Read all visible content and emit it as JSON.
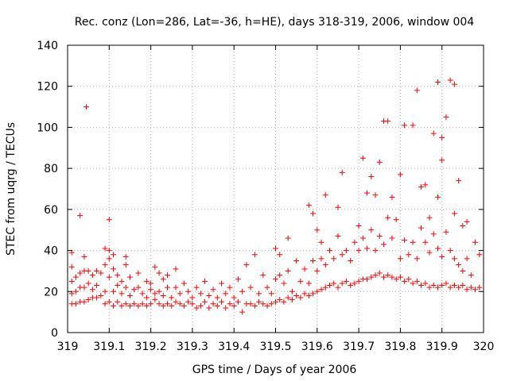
{
  "chart_data": {
    "type": "scatter",
    "title": "Rec. conz (Lon=286, Lat=-36, h=HE), days 318-319, 2006, window 004",
    "xlabel": "GPS time / Days of year 2006",
    "ylabel": "STEC from uqrg / TECUs",
    "xlim": [
      319,
      320
    ],
    "ylim": [
      0,
      140
    ],
    "xticks": [
      319,
      319.1,
      319.2,
      319.3,
      319.4,
      319.5,
      319.6,
      319.7,
      319.8,
      319.9,
      320
    ],
    "xtick_labels": [
      "319",
      "319.1",
      "319.2",
      "319.3",
      "319.4",
      "319.5",
      "319.6",
      "319.7",
      "319.8",
      "319.9",
      "320"
    ],
    "yticks": [
      0,
      20,
      40,
      60,
      80,
      100,
      120,
      140
    ],
    "ytick_labels": [
      "0",
      "20",
      "40",
      "60",
      "80",
      "100",
      "120",
      "140"
    ],
    "grid": true,
    "marker": "plus",
    "color": "#ff0000",
    "series": [
      {
        "points": [
          [
            319.01,
            14
          ],
          [
            319.01,
            19
          ],
          [
            319.01,
            25
          ],
          [
            319.01,
            32
          ],
          [
            319.01,
            39
          ],
          [
            319.02,
            14
          ],
          [
            319.02,
            20
          ],
          [
            319.02,
            27
          ],
          [
            319.03,
            57
          ],
          [
            319.03,
            15
          ],
          [
            319.03,
            22
          ],
          [
            319.03,
            29
          ],
          [
            319.04,
            15
          ],
          [
            319.04,
            22
          ],
          [
            319.04,
            30
          ],
          [
            319.04,
            37
          ],
          [
            319.045,
            110
          ],
          [
            319.05,
            16
          ],
          [
            319.05,
            24
          ],
          [
            319.05,
            30
          ],
          [
            319.06,
            17
          ],
          [
            319.06,
            21
          ],
          [
            319.06,
            28
          ],
          [
            319.07,
            17
          ],
          [
            319.07,
            23
          ],
          [
            319.07,
            30
          ],
          [
            319.08,
            18
          ],
          [
            319.08,
            29
          ],
          [
            319.09,
            14
          ],
          [
            319.09,
            20
          ],
          [
            319.09,
            33
          ],
          [
            319.09,
            41
          ],
          [
            319.1,
            40
          ],
          [
            319.1,
            15
          ],
          [
            319.1,
            27
          ],
          [
            319.1,
            36
          ],
          [
            319.1,
            55
          ],
          [
            319.11,
            13
          ],
          [
            319.11,
            20
          ],
          [
            319.11,
            31
          ],
          [
            319.11,
            38
          ],
          [
            319.12,
            15
          ],
          [
            319.12,
            23
          ],
          [
            319.12,
            28
          ],
          [
            319.13,
            13
          ],
          [
            319.13,
            19
          ],
          [
            319.13,
            25
          ],
          [
            319.14,
            14
          ],
          [
            319.14,
            22
          ],
          [
            319.14,
            33
          ],
          [
            319.14,
            37
          ],
          [
            319.15,
            13
          ],
          [
            319.15,
            18
          ],
          [
            319.15,
            27
          ],
          [
            319.16,
            14
          ],
          [
            319.16,
            21
          ],
          [
            319.17,
            13
          ],
          [
            319.17,
            22
          ],
          [
            319.17,
            29
          ],
          [
            319.18,
            14
          ],
          [
            319.18,
            19
          ],
          [
            319.19,
            13
          ],
          [
            319.19,
            17
          ],
          [
            319.19,
            25
          ],
          [
            319.2,
            14
          ],
          [
            319.2,
            21
          ],
          [
            319.2,
            24
          ],
          [
            319.21,
            16
          ],
          [
            319.21,
            19
          ],
          [
            319.21,
            32
          ],
          [
            319.22,
            14
          ],
          [
            319.22,
            20
          ],
          [
            319.22,
            29
          ],
          [
            319.23,
            13
          ],
          [
            319.23,
            18
          ],
          [
            319.23,
            26
          ],
          [
            319.24,
            14
          ],
          [
            319.24,
            22
          ],
          [
            319.24,
            28
          ],
          [
            319.25,
            13
          ],
          [
            319.25,
            17
          ],
          [
            319.26,
            15
          ],
          [
            319.26,
            22
          ],
          [
            319.26,
            31
          ],
          [
            319.27,
            14
          ],
          [
            319.27,
            19
          ],
          [
            319.28,
            13
          ],
          [
            319.28,
            24
          ],
          [
            319.29,
            15
          ],
          [
            319.29,
            20
          ],
          [
            319.3,
            14
          ],
          [
            319.3,
            17
          ],
          [
            319.31,
            12
          ],
          [
            319.31,
            22
          ],
          [
            319.32,
            13
          ],
          [
            319.32,
            19
          ],
          [
            319.33,
            15
          ],
          [
            319.33,
            25
          ],
          [
            319.34,
            12
          ],
          [
            319.34,
            18
          ],
          [
            319.35,
            14
          ],
          [
            319.35,
            21
          ],
          [
            319.36,
            13
          ],
          [
            319.36,
            17
          ],
          [
            319.37,
            15
          ],
          [
            319.37,
            24
          ],
          [
            319.38,
            12
          ],
          [
            319.38,
            19
          ],
          [
            319.39,
            14
          ],
          [
            319.39,
            22
          ],
          [
            319.4,
            13
          ],
          [
            319.4,
            17
          ],
          [
            319.41,
            15
          ],
          [
            319.41,
            26
          ],
          [
            319.42,
            10
          ],
          [
            319.42,
            20
          ],
          [
            319.43,
            14
          ],
          [
            319.43,
            33
          ],
          [
            319.44,
            14
          ],
          [
            319.44,
            22
          ],
          [
            319.45,
            13
          ],
          [
            319.45,
            38
          ],
          [
            319.46,
            15
          ],
          [
            319.46,
            19
          ],
          [
            319.47,
            14
          ],
          [
            319.47,
            28
          ],
          [
            319.48,
            13
          ],
          [
            319.48,
            22
          ],
          [
            319.49,
            14
          ],
          [
            319.49,
            19
          ],
          [
            319.5,
            15
          ],
          [
            319.5,
            26
          ],
          [
            319.5,
            41
          ],
          [
            319.51,
            16
          ],
          [
            319.51,
            28
          ],
          [
            319.51,
            38
          ],
          [
            319.52,
            15
          ],
          [
            319.52,
            24
          ],
          [
            319.53,
            17
          ],
          [
            319.53,
            30
          ],
          [
            319.53,
            46
          ],
          [
            319.54,
            16
          ],
          [
            319.54,
            20
          ],
          [
            319.55,
            18
          ],
          [
            319.55,
            35
          ],
          [
            319.56,
            17
          ],
          [
            319.56,
            25
          ],
          [
            319.57,
            19
          ],
          [
            319.57,
            31
          ],
          [
            319.58,
            18
          ],
          [
            319.58,
            24
          ],
          [
            319.58,
            62
          ],
          [
            319.59,
            19
          ],
          [
            319.59,
            35
          ],
          [
            319.59,
            58
          ],
          [
            319.6,
            20
          ],
          [
            319.6,
            30
          ],
          [
            319.6,
            50
          ],
          [
            319.61,
            21
          ],
          [
            319.61,
            36
          ],
          [
            319.61,
            44
          ],
          [
            319.62,
            22
          ],
          [
            319.62,
            33
          ],
          [
            319.62,
            67
          ],
          [
            319.63,
            23
          ],
          [
            319.63,
            40
          ],
          [
            319.64,
            24
          ],
          [
            319.64,
            36
          ],
          [
            319.65,
            22
          ],
          [
            319.65,
            47
          ],
          [
            319.65,
            61
          ],
          [
            319.66,
            24
          ],
          [
            319.66,
            38
          ],
          [
            319.66,
            78
          ],
          [
            319.67,
            25
          ],
          [
            319.67,
            40
          ],
          [
            319.68,
            23
          ],
          [
            319.68,
            35
          ],
          [
            319.69,
            24
          ],
          [
            319.69,
            44
          ],
          [
            319.7,
            25
          ],
          [
            319.7,
            40
          ],
          [
            319.7,
            52
          ],
          [
            319.71,
            26
          ],
          [
            319.71,
            46
          ],
          [
            319.71,
            85
          ],
          [
            319.72,
            26
          ],
          [
            319.72,
            41
          ],
          [
            319.72,
            68
          ],
          [
            319.73,
            27
          ],
          [
            319.73,
            50
          ],
          [
            319.73,
            76
          ],
          [
            319.74,
            28
          ],
          [
            319.74,
            40
          ],
          [
            319.74,
            67
          ],
          [
            319.75,
            29
          ],
          [
            319.75,
            47
          ],
          [
            319.75,
            83
          ],
          [
            319.76,
            27
          ],
          [
            319.76,
            43
          ],
          [
            319.76,
            103
          ],
          [
            319.77,
            28
          ],
          [
            319.77,
            56
          ],
          [
            319.77,
            103
          ],
          [
            319.78,
            27
          ],
          [
            319.78,
            46
          ],
          [
            319.78,
            66
          ],
          [
            319.79,
            26
          ],
          [
            319.79,
            55
          ],
          [
            319.8,
            27
          ],
          [
            319.8,
            36
          ],
          [
            319.8,
            77
          ],
          [
            319.81,
            25
          ],
          [
            319.81,
            45
          ],
          [
            319.81,
            101
          ],
          [
            319.82,
            26
          ],
          [
            319.82,
            38
          ],
          [
            319.83,
            24
          ],
          [
            319.83,
            44
          ],
          [
            319.83,
            101
          ],
          [
            319.84,
            25
          ],
          [
            319.84,
            36
          ],
          [
            319.84,
            118
          ],
          [
            319.85,
            23
          ],
          [
            319.85,
            51
          ],
          [
            319.85,
            71
          ],
          [
            319.86,
            24
          ],
          [
            319.86,
            44
          ],
          [
            319.86,
            72
          ],
          [
            319.87,
            22
          ],
          [
            319.87,
            39
          ],
          [
            319.87,
            56
          ],
          [
            319.88,
            23
          ],
          [
            319.88,
            48
          ],
          [
            319.88,
            97
          ],
          [
            319.89,
            22
          ],
          [
            319.89,
            41
          ],
          [
            319.89,
            66
          ],
          [
            319.89,
            122
          ],
          [
            319.9,
            23
          ],
          [
            319.9,
            37
          ],
          [
            319.9,
            84
          ],
          [
            319.9,
            95
          ],
          [
            319.91,
            24
          ],
          [
            319.91,
            49
          ],
          [
            319.91,
            105
          ],
          [
            319.92,
            22
          ],
          [
            319.92,
            40
          ],
          [
            319.92,
            123
          ],
          [
            319.93,
            23
          ],
          [
            319.93,
            36
          ],
          [
            319.93,
            58
          ],
          [
            319.93,
            121
          ],
          [
            319.94,
            22
          ],
          [
            319.94,
            33
          ],
          [
            319.94,
            74
          ],
          [
            319.95,
            23
          ],
          [
            319.95,
            30
          ],
          [
            319.95,
            52
          ],
          [
            319.96,
            21
          ],
          [
            319.96,
            36
          ],
          [
            319.96,
            54
          ],
          [
            319.97,
            22
          ],
          [
            319.97,
            28
          ],
          [
            319.98,
            21
          ],
          [
            319.98,
            44
          ],
          [
            319.99,
            22
          ],
          [
            319.99,
            38
          ]
        ]
      }
    ]
  }
}
